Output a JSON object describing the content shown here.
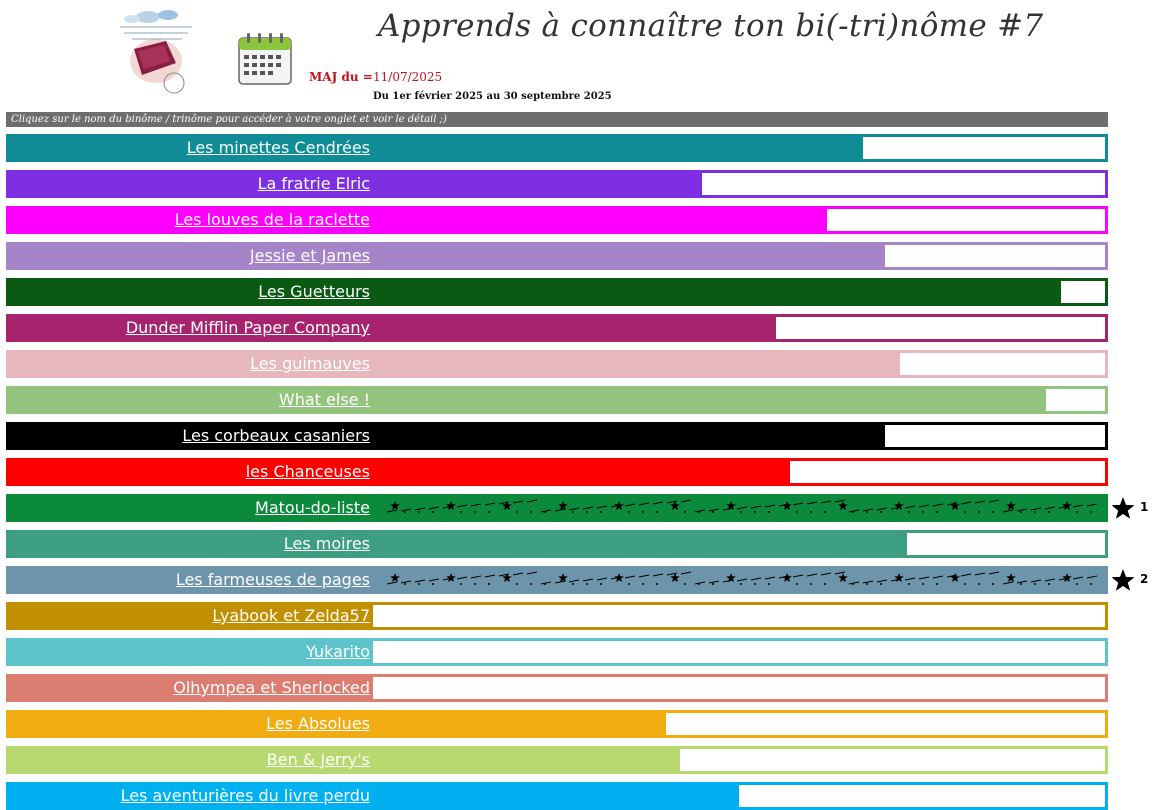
{
  "header": {
    "title": "Apprends à connaître ton bi(-tri)nôme #7",
    "maj_label": "MAJ du =",
    "maj_date": "11/07/2025",
    "period": "Du 1er février 2025 au 30 septembre 2025",
    "instruction": "Cliquez sur le nom du binôme / trinôme pour accéder à votre onglet et voir le détail ;)"
  },
  "icons": {
    "logo": "club-logo-icon",
    "calendar": "calendar-icon",
    "winner": "star-icon"
  },
  "chart_data": {
    "type": "bar",
    "orientation": "horizontal",
    "xlim": [
      0,
      100
    ],
    "grid": false,
    "categories": [
      "Les minettes Cendrées",
      "La fratrie Elric",
      "Les louves de la raclette",
      "Jessie et James",
      "Les Guetteurs",
      "Dunder Mifflin Paper Company",
      "Les guimauves",
      "What else !",
      "Les corbeaux casaniers",
      "les Chanceuses",
      "Matou-do-liste",
      "Les moires",
      "Les farmeuses de pages",
      "Lyabook et Zelda57",
      "Yukarito",
      "Olhympea et Sherlocked",
      "Les Absolues",
      "Ben & Jerry's",
      "Les aventurières du livre perdu"
    ],
    "values": [
      67,
      45,
      62,
      70,
      94,
      55,
      72,
      92,
      70,
      57,
      100,
      73,
      100,
      0,
      0,
      0,
      40,
      42,
      50
    ],
    "colors": [
      "#0f8c96",
      "#7e2fe4",
      "#ff00ff",
      "#a584c8",
      "#0a5a14",
      "#a8236e",
      "#e6b8bd",
      "#93c47d",
      "#000000",
      "#ff0000",
      "#0a8a3a",
      "#3e9e82",
      "#6c95ab",
      "#c09000",
      "#5ec4cc",
      "#dc7d72",
      "#f0ac10",
      "#b8d870",
      "#00b0f0"
    ],
    "completed_pattern": [
      false,
      false,
      false,
      false,
      false,
      false,
      false,
      false,
      false,
      false,
      true,
      false,
      true,
      false,
      false,
      false,
      false,
      false,
      false
    ],
    "ranks": [
      "",
      "",
      "",
      "",
      "",
      "",
      "",
      "",
      "",
      "",
      "1",
      "",
      "2",
      "",
      "",
      "",
      "",
      "",
      ""
    ]
  }
}
